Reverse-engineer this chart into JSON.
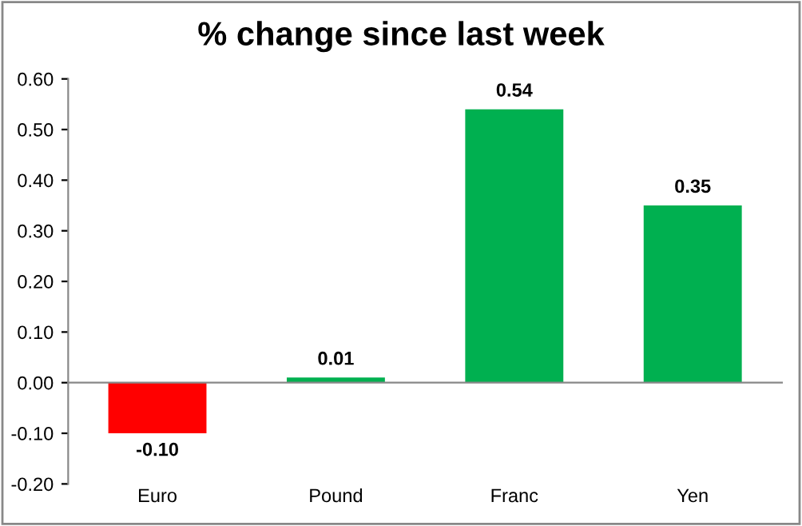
{
  "chart_data": {
    "type": "bar",
    "title": "% change since last week",
    "categories": [
      "Euro",
      "Pound",
      "Franc",
      "Yen"
    ],
    "values": [
      -0.1,
      0.01,
      0.54,
      0.35
    ],
    "colors": [
      "#ff0000",
      "#00b050",
      "#00b050",
      "#00b050"
    ],
    "value_labels": [
      "-0.10",
      "0.01",
      "0.54",
      "0.35"
    ],
    "ylim": [
      -0.2,
      0.6
    ],
    "yticks": [
      {
        "value": -0.2,
        "label": "-0.20"
      },
      {
        "value": -0.1,
        "label": "-0.10"
      },
      {
        "value": 0,
        "label": "0.00"
      },
      {
        "value": 0.1,
        "label": "0.10"
      },
      {
        "value": 0.2,
        "label": "0.20"
      },
      {
        "value": 0.3,
        "label": "0.30"
      },
      {
        "value": 0.4,
        "label": "0.40"
      },
      {
        "value": 0.5,
        "label": "0.50"
      },
      {
        "value": 0.6,
        "label": "0.60"
      }
    ],
    "legend": false
  }
}
